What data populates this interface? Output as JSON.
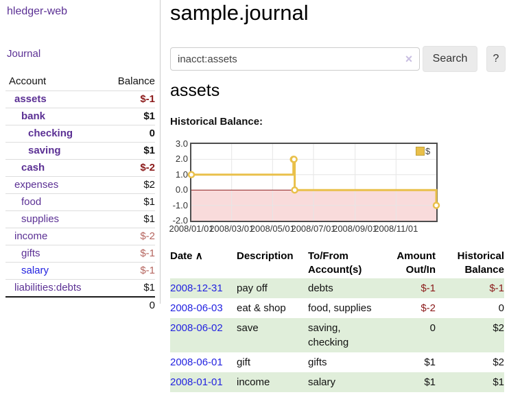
{
  "sidebar": {
    "brand": "hledger-web",
    "nav_journal": "Journal",
    "accounts_header": {
      "account": "Account",
      "balance": "Balance"
    },
    "accounts": [
      {
        "name": "assets",
        "depth": 0,
        "bold": true,
        "link_color": "purple",
        "balance": "$-1",
        "tone": "neg"
      },
      {
        "name": "bank",
        "depth": 1,
        "bold": true,
        "link_color": "purple",
        "balance": "$1",
        "tone": ""
      },
      {
        "name": "checking",
        "depth": 2,
        "bold": true,
        "link_color": "purple",
        "balance": "0",
        "tone": ""
      },
      {
        "name": "saving",
        "depth": 2,
        "bold": true,
        "link_color": "purple",
        "balance": "$1",
        "tone": ""
      },
      {
        "name": "cash",
        "depth": 1,
        "bold": true,
        "link_color": "purple",
        "balance": "$-2",
        "tone": "neg"
      },
      {
        "name": "expenses",
        "depth": 0,
        "bold": false,
        "link_color": "purple",
        "balance": "$2",
        "tone": ""
      },
      {
        "name": "food",
        "depth": 1,
        "bold": false,
        "link_color": "purple",
        "balance": "$1",
        "tone": ""
      },
      {
        "name": "supplies",
        "depth": 1,
        "bold": false,
        "link_color": "purple",
        "balance": "$1",
        "tone": ""
      },
      {
        "name": "income",
        "depth": 0,
        "bold": false,
        "link_color": "purple",
        "balance": "$-2",
        "tone": "muted"
      },
      {
        "name": "gifts",
        "depth": 1,
        "bold": false,
        "link_color": "purple",
        "balance": "$-1",
        "tone": "muted"
      },
      {
        "name": "salary",
        "depth": 1,
        "bold": false,
        "link_color": "blue",
        "balance": "$-1",
        "tone": "muted"
      },
      {
        "name": "liabilities:debts",
        "depth": 0,
        "bold": false,
        "link_color": "purple",
        "balance": "$1",
        "tone": ""
      }
    ],
    "total": "0"
  },
  "main": {
    "title": "sample.journal",
    "search": {
      "value": "inacct:assets",
      "clear_icon": "×",
      "button": "Search",
      "help": "?"
    },
    "account_heading": "assets"
  },
  "chart_data": {
    "type": "line",
    "title": "Historical Balance:",
    "step": true,
    "series": [
      {
        "name": "$",
        "color": "#e9c04a",
        "points": [
          [
            "2008-01-01",
            1
          ],
          [
            "2008-06-01",
            2
          ],
          [
            "2008-06-02",
            2
          ],
          [
            "2008-06-03",
            0
          ],
          [
            "2008-12-31",
            -1
          ]
        ]
      }
    ],
    "x_range": [
      "2008-01-01",
      "2008-12-31"
    ],
    "ylim": [
      -2,
      3
    ],
    "y_ticks": [
      "3.0",
      "2.0",
      "1.0",
      "0.0",
      "-1.0",
      "-2.0"
    ],
    "x_ticks": [
      "2008/01/01",
      "2008/03/01",
      "2008/05/01",
      "2008/07/01",
      "2008/09/01",
      "2008/11/01"
    ],
    "negative_fill": "#f9dbdb",
    "zero_line_color": "#8b1a1a",
    "legend_position": "top-right",
    "grid": true
  },
  "register": {
    "sort_indicator": "∧",
    "headers": {
      "date": "Date",
      "description": "Description",
      "account_l1": "To/From",
      "account_l2": "Account(s)",
      "amount_l1": "Amount",
      "amount_l2": "Out/In",
      "balance_l1": "Historical",
      "balance_l2": "Balance"
    },
    "rows": [
      {
        "date": "2008-12-31",
        "description": "pay off",
        "accounts": "debts",
        "amount": "$-1",
        "balance": "$-1",
        "amount_neg": true,
        "balance_neg": true,
        "shaded": true
      },
      {
        "date": "2008-06-03",
        "description": "eat & shop",
        "accounts": "food, supplies",
        "amount": "$-2",
        "balance": "0",
        "amount_neg": true,
        "balance_neg": false,
        "shaded": false
      },
      {
        "date": "2008-06-02",
        "description": "save",
        "accounts": "saving, checking",
        "amount": "0",
        "balance": "$2",
        "amount_neg": false,
        "balance_neg": false,
        "shaded": true
      },
      {
        "date": "2008-06-01",
        "description": "gift",
        "accounts": "gifts",
        "amount": "$1",
        "balance": "$2",
        "amount_neg": false,
        "balance_neg": false,
        "shaded": false
      },
      {
        "date": "2008-01-01",
        "description": "income",
        "accounts": "salary",
        "amount": "$1",
        "balance": "$1",
        "amount_neg": false,
        "balance_neg": false,
        "shaded": true
      }
    ]
  }
}
